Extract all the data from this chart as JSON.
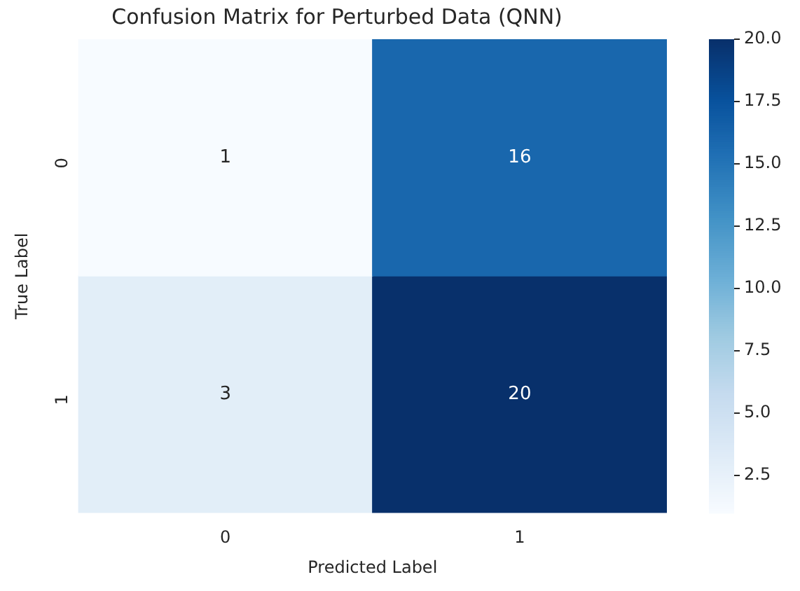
{
  "chart_data": {
    "type": "heatmap",
    "title": "Confusion Matrix for Perturbed Data (QNN)",
    "xlabel": "Predicted Label",
    "ylabel": "True Label",
    "categories": [
      "0",
      "1"
    ],
    "y_categories": [
      "0",
      "1"
    ],
    "cells": [
      [
        1,
        16
      ],
      [
        3,
        20
      ]
    ],
    "data_labels": true,
    "clim": [
      1,
      20
    ],
    "cticks": [
      {
        "value": 2.5,
        "label": "2.5"
      },
      {
        "value": 5,
        "label": "5.0"
      },
      {
        "value": 7.5,
        "label": "7.5"
      },
      {
        "value": 10,
        "label": "10.0"
      },
      {
        "value": 12.5,
        "label": "12.5"
      },
      {
        "value": 15,
        "label": "15.0"
      },
      {
        "value": 17.5,
        "label": "17.5"
      },
      {
        "value": 20,
        "label": "20.0"
      }
    ]
  }
}
